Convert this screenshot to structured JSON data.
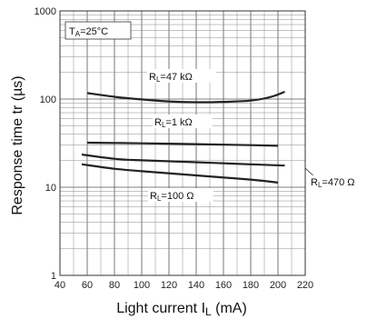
{
  "chart_data": {
    "type": "line",
    "x_axis": {
      "min": 40,
      "max": 220,
      "ticks": [
        40,
        60,
        80,
        100,
        120,
        140,
        160,
        180,
        200,
        220
      ]
    },
    "y_axis": {
      "scale": "log",
      "min": 1,
      "max": 1000,
      "ticks": [
        1,
        10,
        100,
        1000
      ]
    },
    "xlabel": {
      "main": "Light current I",
      "sub": "L",
      "unit": " (mA)"
    },
    "ylabel": "Response time tr (µs)",
    "condition": {
      "main": "T",
      "sub": "A",
      "rest": "=25°C"
    },
    "grid": true,
    "series": [
      {
        "name": "RL=47 kΩ",
        "label_main": "R",
        "label_sub": "L",
        "label_rest": "=47 kΩ",
        "points": [
          [
            60,
            117
          ],
          [
            80,
            106
          ],
          [
            100,
            99
          ],
          [
            120,
            94
          ],
          [
            140,
            92
          ],
          [
            160,
            93
          ],
          [
            180,
            96
          ],
          [
            195,
            106
          ],
          [
            205,
            121
          ]
        ]
      },
      {
        "name": "RL=1 kΩ",
        "label_main": "R",
        "label_sub": "L",
        "label_rest": "=1 kΩ",
        "points": [
          [
            60,
            32
          ],
          [
            100,
            31.5
          ],
          [
            140,
            30.8
          ],
          [
            180,
            30
          ],
          [
            200,
            29.5
          ]
        ]
      },
      {
        "name": "RL=470 Ω",
        "label_main": "R",
        "label_sub": "L",
        "label_rest": "=470 Ω",
        "points": [
          [
            56,
            23.5
          ],
          [
            80,
            21
          ],
          [
            100,
            20.2
          ],
          [
            140,
            19.2
          ],
          [
            180,
            18.2
          ],
          [
            205,
            17.6
          ]
        ]
      },
      {
        "name": "RL=100 Ω",
        "label_main": "R",
        "label_sub": "L",
        "label_rest": "=100 Ω",
        "points": [
          [
            56,
            18.2
          ],
          [
            80,
            16.2
          ],
          [
            100,
            15.2
          ],
          [
            140,
            13.6
          ],
          [
            180,
            12.2
          ],
          [
            200,
            11.3
          ]
        ]
      }
    ]
  }
}
